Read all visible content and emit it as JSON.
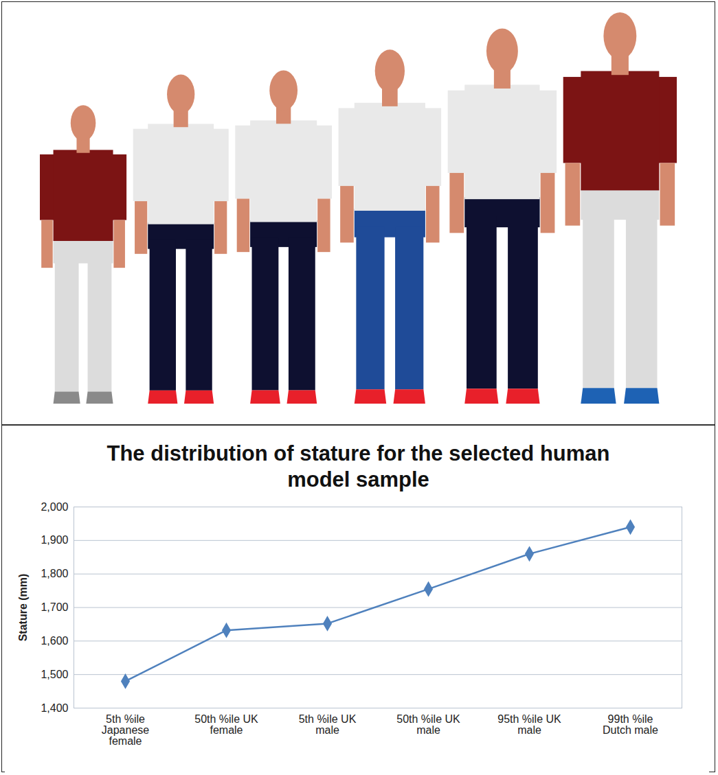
{
  "chart_data": {
    "type": "line",
    "title": "The distribution of stature for the selected human model sample",
    "y_label": "Stature (mm)",
    "categories": [
      "5th %ile Japanese female",
      "50th %ile UK female",
      "5th %ile UK male",
      "50th %ile UK male",
      "95th %ile UK male",
      "99th %ile Dutch male"
    ],
    "values": [
      1480,
      1632,
      1652,
      1755,
      1860,
      1940
    ],
    "color": "#4f81bd",
    "marker": "diamond",
    "ylim": [
      1400,
      2000
    ],
    "yticks": [
      1400,
      1500,
      1600,
      1700,
      1800,
      1900,
      2000
    ],
    "grid": true
  }
}
